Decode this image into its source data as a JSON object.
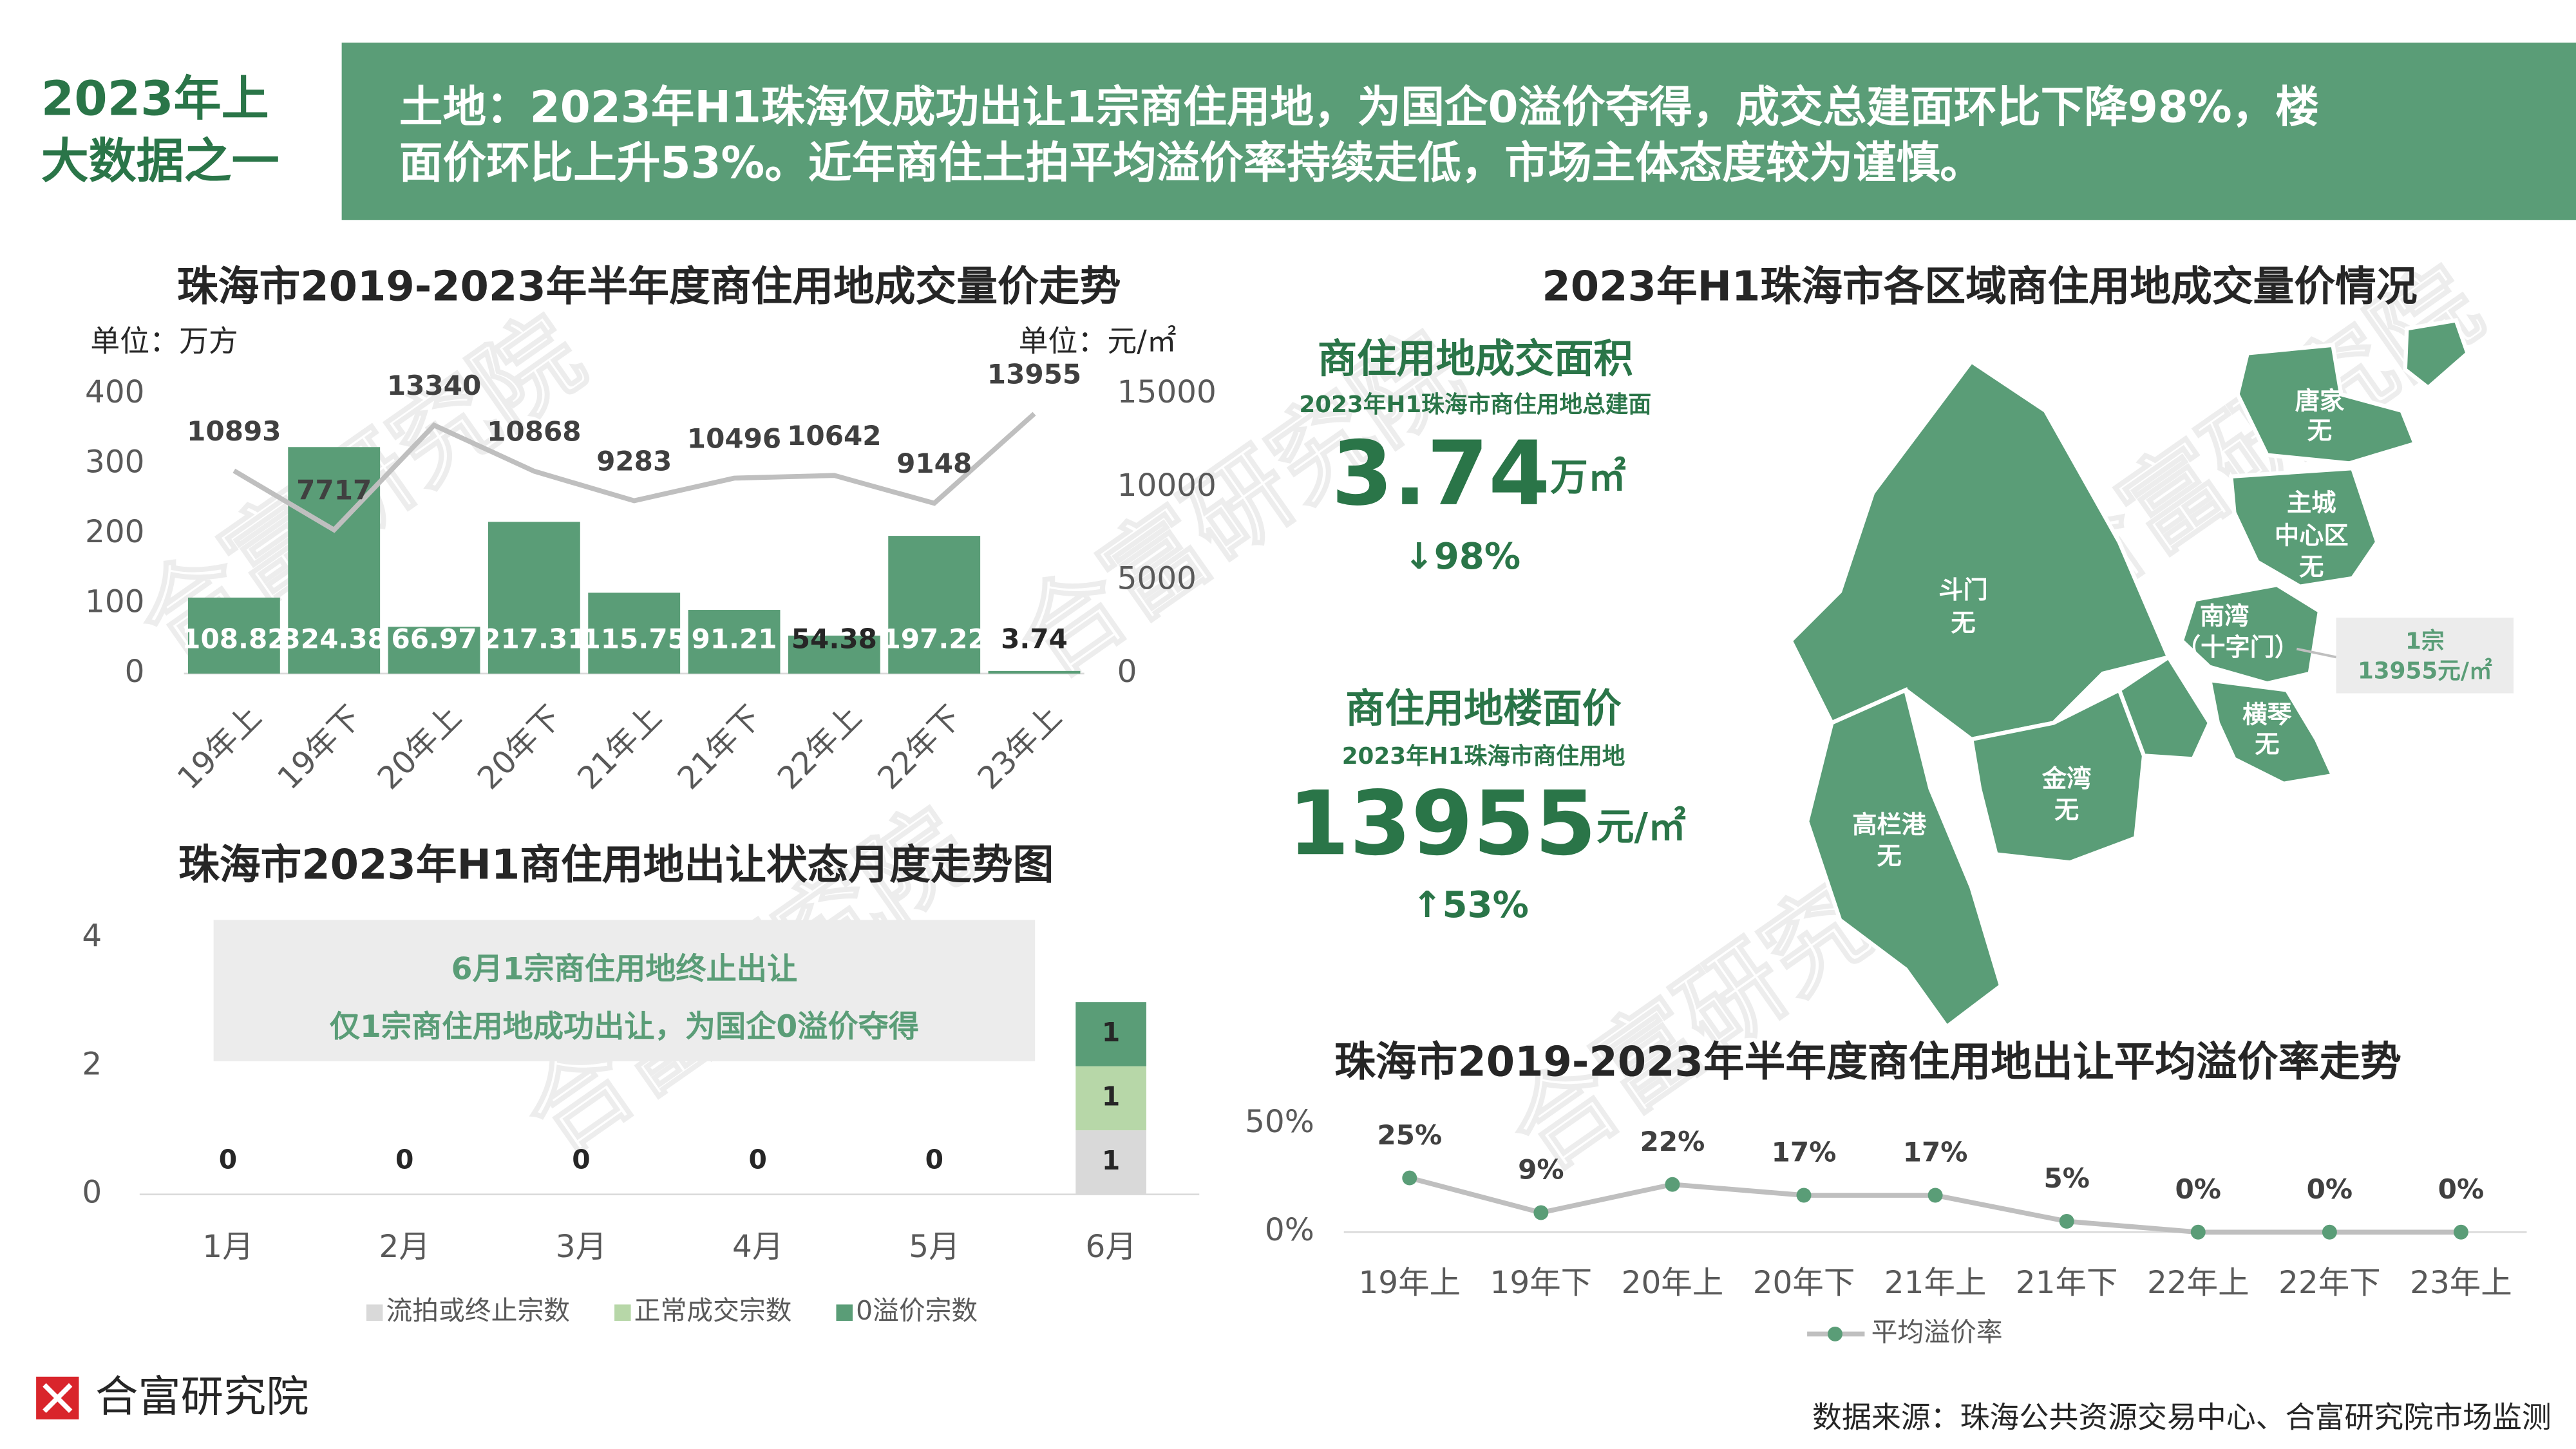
{
  "header": {
    "badge": [
      "2023年上",
      "大数据之一"
    ],
    "headline": [
      "土地：2023年H1珠海仅成功出让1宗商住用地，为国企0溢价夺得，成交总建面环比下降98%，楼",
      "面价环比上升53%。近年商住土拍平均溢价率持续走低，市场主体态度较为谨慎。"
    ]
  },
  "watermark": "合富研究院",
  "chart_data": [
    {
      "type": "bar",
      "title": "珠海市2019-2023年半年度商住用地成交量价走势",
      "y_unit": "单位：万方",
      "y2_unit": "单位：元/㎡",
      "categories": [
        "19年上",
        "19年下",
        "20年上",
        "20年下",
        "21年上",
        "21年下",
        "22年上",
        "22年下",
        "23年上"
      ],
      "series": [
        {
          "color": "#5a9d77",
          "values": [
            108.82,
            324.38,
            66.97,
            217.31,
            115.75,
            91.21,
            54.38,
            197.22,
            3.74
          ]
        },
        {
          "type": "line",
          "axis": "y2",
          "color": "#bfbfbf",
          "values": [
            10893,
            7717,
            13340,
            10868,
            9283,
            10496,
            10642,
            9148,
            13955
          ]
        }
      ],
      "ylim": [
        0,
        400
      ],
      "yticks": [
        0,
        100,
        200,
        300,
        400
      ],
      "y2lim": [
        0,
        15000
      ],
      "y2ticks": [
        0,
        5000,
        10000,
        15000
      ],
      "grid": false
    },
    {
      "type": "bar",
      "stacked": true,
      "title": "珠海市2023年H1商住用地出让状态月度走势图",
      "annotation": [
        "6月1宗商住用地终止出让",
        "仅1宗商住用地成功出让，为国企0溢价夺得"
      ],
      "categories": [
        "1月",
        "2月",
        "3月",
        "4月",
        "5月",
        "6月"
      ],
      "series": [
        {
          "name": "流拍或终止宗数",
          "color": "#d9d9d9",
          "values": [
            0,
            0,
            0,
            0,
            0,
            1
          ]
        },
        {
          "name": "正常成交宗数",
          "color": "#b7d7a8",
          "values": [
            0,
            0,
            0,
            0,
            0,
            1
          ]
        },
        {
          "name": "0溢价宗数",
          "color": "#5a9d77",
          "values": [
            0,
            0,
            0,
            0,
            0,
            1
          ]
        }
      ],
      "ylim": [
        0,
        4
      ],
      "yticks": [
        0,
        2,
        4
      ],
      "grid": false,
      "legend": "bottom"
    },
    {
      "type": "line",
      "title": "珠海市2019-2023年半年度商住用地出让平均溢价率走势",
      "categories": [
        "19年上",
        "19年下",
        "20年上",
        "20年下",
        "21年上",
        "21年下",
        "22年上",
        "22年下",
        "23年上"
      ],
      "series": [
        {
          "name": "平均溢价率",
          "color": "#bfbfbf",
          "marker_color": "#5a9d77",
          "values": [
            25,
            9,
            22,
            17,
            17,
            5,
            0,
            0,
            0
          ],
          "value_labels": [
            "25%",
            "9%",
            "22%",
            "17%",
            "17%",
            "5%",
            "0%",
            "0%",
            "0%"
          ]
        }
      ],
      "ylim": [
        0,
        50
      ],
      "yticks": [
        {
          "value": 0,
          "label": "0%"
        },
        {
          "value": 50,
          "label": "50%"
        }
      ],
      "grid": false,
      "legend": "bottom"
    }
  ],
  "regional": {
    "title": "2023年H1珠海市各区域商住用地成交量价情况",
    "kpis": [
      {
        "title": "商住用地成交面积",
        "subtitle": "2023年H1珠海市商住用地总建面",
        "value": 3.74,
        "unit": "万㎡",
        "change": "↓98%"
      },
      {
        "title": "商住用地楼面价",
        "subtitle": "2023年H1珠海市商住用地",
        "value": 13955,
        "unit": "元/㎡",
        "change": "↑53%"
      }
    ],
    "map": {
      "regions": [
        {
          "name": [
            "斗门"
          ],
          "status": "无"
        },
        {
          "name": [
            "金湾"
          ],
          "status": "无"
        },
        {
          "name": [
            "高栏港"
          ],
          "status": "无"
        },
        {
          "name": [
            "唐家"
          ],
          "status": "无"
        },
        {
          "name": [
            "主城",
            "中心区"
          ],
          "status": "无"
        },
        {
          "name": [
            "南湾",
            "（十字门）"
          ]
        },
        {
          "name": [
            "横琴"
          ],
          "status": "无"
        }
      ],
      "callout": [
        "1宗",
        "13955元/㎡"
      ]
    }
  },
  "footer": {
    "logo": "合富研究院",
    "source": "数据来源：珠海公共资源交易中心、合富研究院市场监测"
  }
}
